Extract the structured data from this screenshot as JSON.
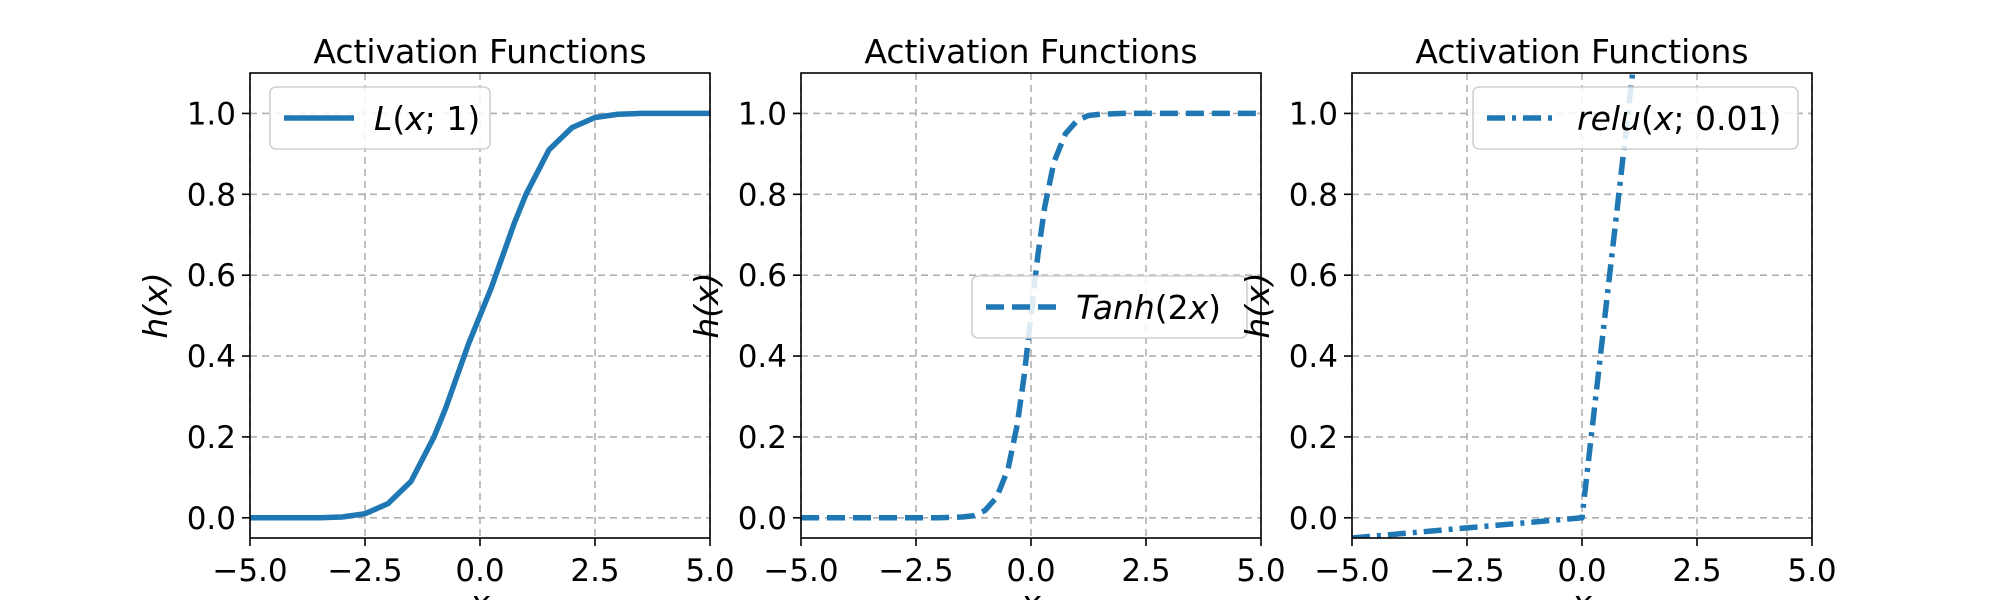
{
  "chart_data": [
    {
      "type": "line",
      "title": "Activation Functions",
      "xlabel": "x",
      "ylabel": "h(x)",
      "xlim": [
        -5,
        5
      ],
      "ylim": [
        -0.05,
        1.1
      ],
      "xticks": [
        -5.0,
        -2.5,
        0.0,
        2.5,
        5.0
      ],
      "xtick_labels": [
        "−5.0",
        "−2.5",
        "0.0",
        "2.5",
        "5.0"
      ],
      "yticks": [
        0.0,
        0.2,
        0.4,
        0.6,
        0.8,
        1.0
      ],
      "ytick_labels": [
        "0.0",
        "0.2",
        "0.4",
        "0.6",
        "0.8",
        "1.0"
      ],
      "grid": true,
      "legend_loc": "upper-left",
      "series": [
        {
          "name": "L(x; 1)",
          "name_parts": [
            {
              "t": "L",
              "i": true
            },
            {
              "t": "(",
              "i": false
            },
            {
              "t": "x",
              "i": true
            },
            {
              "t": "; 1)",
              "i": false
            }
          ],
          "style": "solid",
          "color": "#1f77b4",
          "x": [
            -5,
            -4.5,
            -4,
            -3.5,
            -3,
            -2.5,
            -2,
            -1.5,
            -1,
            -0.75,
            -0.5,
            -0.25,
            0,
            0.25,
            0.5,
            0.75,
            1,
            1.5,
            2,
            2.5,
            3,
            3.5,
            4,
            4.5,
            5
          ],
          "y": [
            0.0,
            0.0,
            0.0,
            0.0,
            0.002,
            0.01,
            0.035,
            0.09,
            0.2,
            0.27,
            0.35,
            0.43,
            0.5,
            0.57,
            0.65,
            0.73,
            0.8,
            0.91,
            0.965,
            0.99,
            0.998,
            1.0,
            1.0,
            1.0,
            1.0
          ]
        }
      ]
    },
    {
      "type": "line",
      "title": "Activation Functions",
      "xlabel": "x",
      "ylabel": "h(x)",
      "xlim": [
        -5,
        5
      ],
      "ylim": [
        -0.05,
        1.1
      ],
      "xticks": [
        -5.0,
        -2.5,
        0.0,
        2.5,
        5.0
      ],
      "xtick_labels": [
        "−5.0",
        "−2.5",
        "0.0",
        "2.5",
        "5.0"
      ],
      "yticks": [
        0.0,
        0.2,
        0.4,
        0.6,
        0.8,
        1.0
      ],
      "ytick_labels": [
        "0.0",
        "0.2",
        "0.4",
        "0.6",
        "0.8",
        "1.0"
      ],
      "grid": true,
      "legend_loc": "center-right",
      "series": [
        {
          "name": "Tanh(2x)",
          "name_parts": [
            {
              "t": "Tanh",
              "i": true
            },
            {
              "t": "(2",
              "i": false
            },
            {
              "t": "x",
              "i": true
            },
            {
              "t": ")",
              "i": false
            }
          ],
          "style": "dashed",
          "color": "#1f77b4",
          "x": [
            -5,
            -3,
            -2,
            -1.5,
            -1.25,
            -1,
            -0.75,
            -0.5,
            -0.3,
            -0.15,
            0,
            0.15,
            0.3,
            0.5,
            0.75,
            1,
            1.25,
            1.5,
            2,
            3,
            5
          ],
          "y": [
            0.0,
            0.0,
            0.0,
            0.002,
            0.005,
            0.018,
            0.05,
            0.12,
            0.23,
            0.35,
            0.5,
            0.65,
            0.77,
            0.88,
            0.95,
            0.982,
            0.995,
            0.998,
            1.0,
            1.0,
            1.0
          ]
        }
      ]
    },
    {
      "type": "line",
      "title": "Activation Functions",
      "xlabel": "x",
      "ylabel": "h(x)",
      "xlim": [
        -5,
        5
      ],
      "ylim": [
        -0.05,
        1.1
      ],
      "xticks": [
        -5.0,
        -2.5,
        0.0,
        2.5,
        5.0
      ],
      "xtick_labels": [
        "−5.0",
        "−2.5",
        "0.0",
        "2.5",
        "5.0"
      ],
      "yticks": [
        0.0,
        0.2,
        0.4,
        0.6,
        0.8,
        1.0
      ],
      "ytick_labels": [
        "0.0",
        "0.2",
        "0.4",
        "0.6",
        "0.8",
        "1.0"
      ],
      "grid": true,
      "legend_loc": "upper-right",
      "series": [
        {
          "name": "relu(x; 0.01)",
          "name_parts": [
            {
              "t": "relu",
              "i": true
            },
            {
              "t": "(",
              "i": false
            },
            {
              "t": "x",
              "i": true
            },
            {
              "t": "; 0.01)",
              "i": false
            }
          ],
          "style": "dashdot",
          "color": "#1f77b4",
          "x": [
            -5,
            -2.5,
            0,
            0.5,
            1.0,
            1.1
          ],
          "y": [
            -0.05,
            -0.025,
            0,
            0.5,
            1.0,
            1.1
          ]
        }
      ]
    }
  ]
}
